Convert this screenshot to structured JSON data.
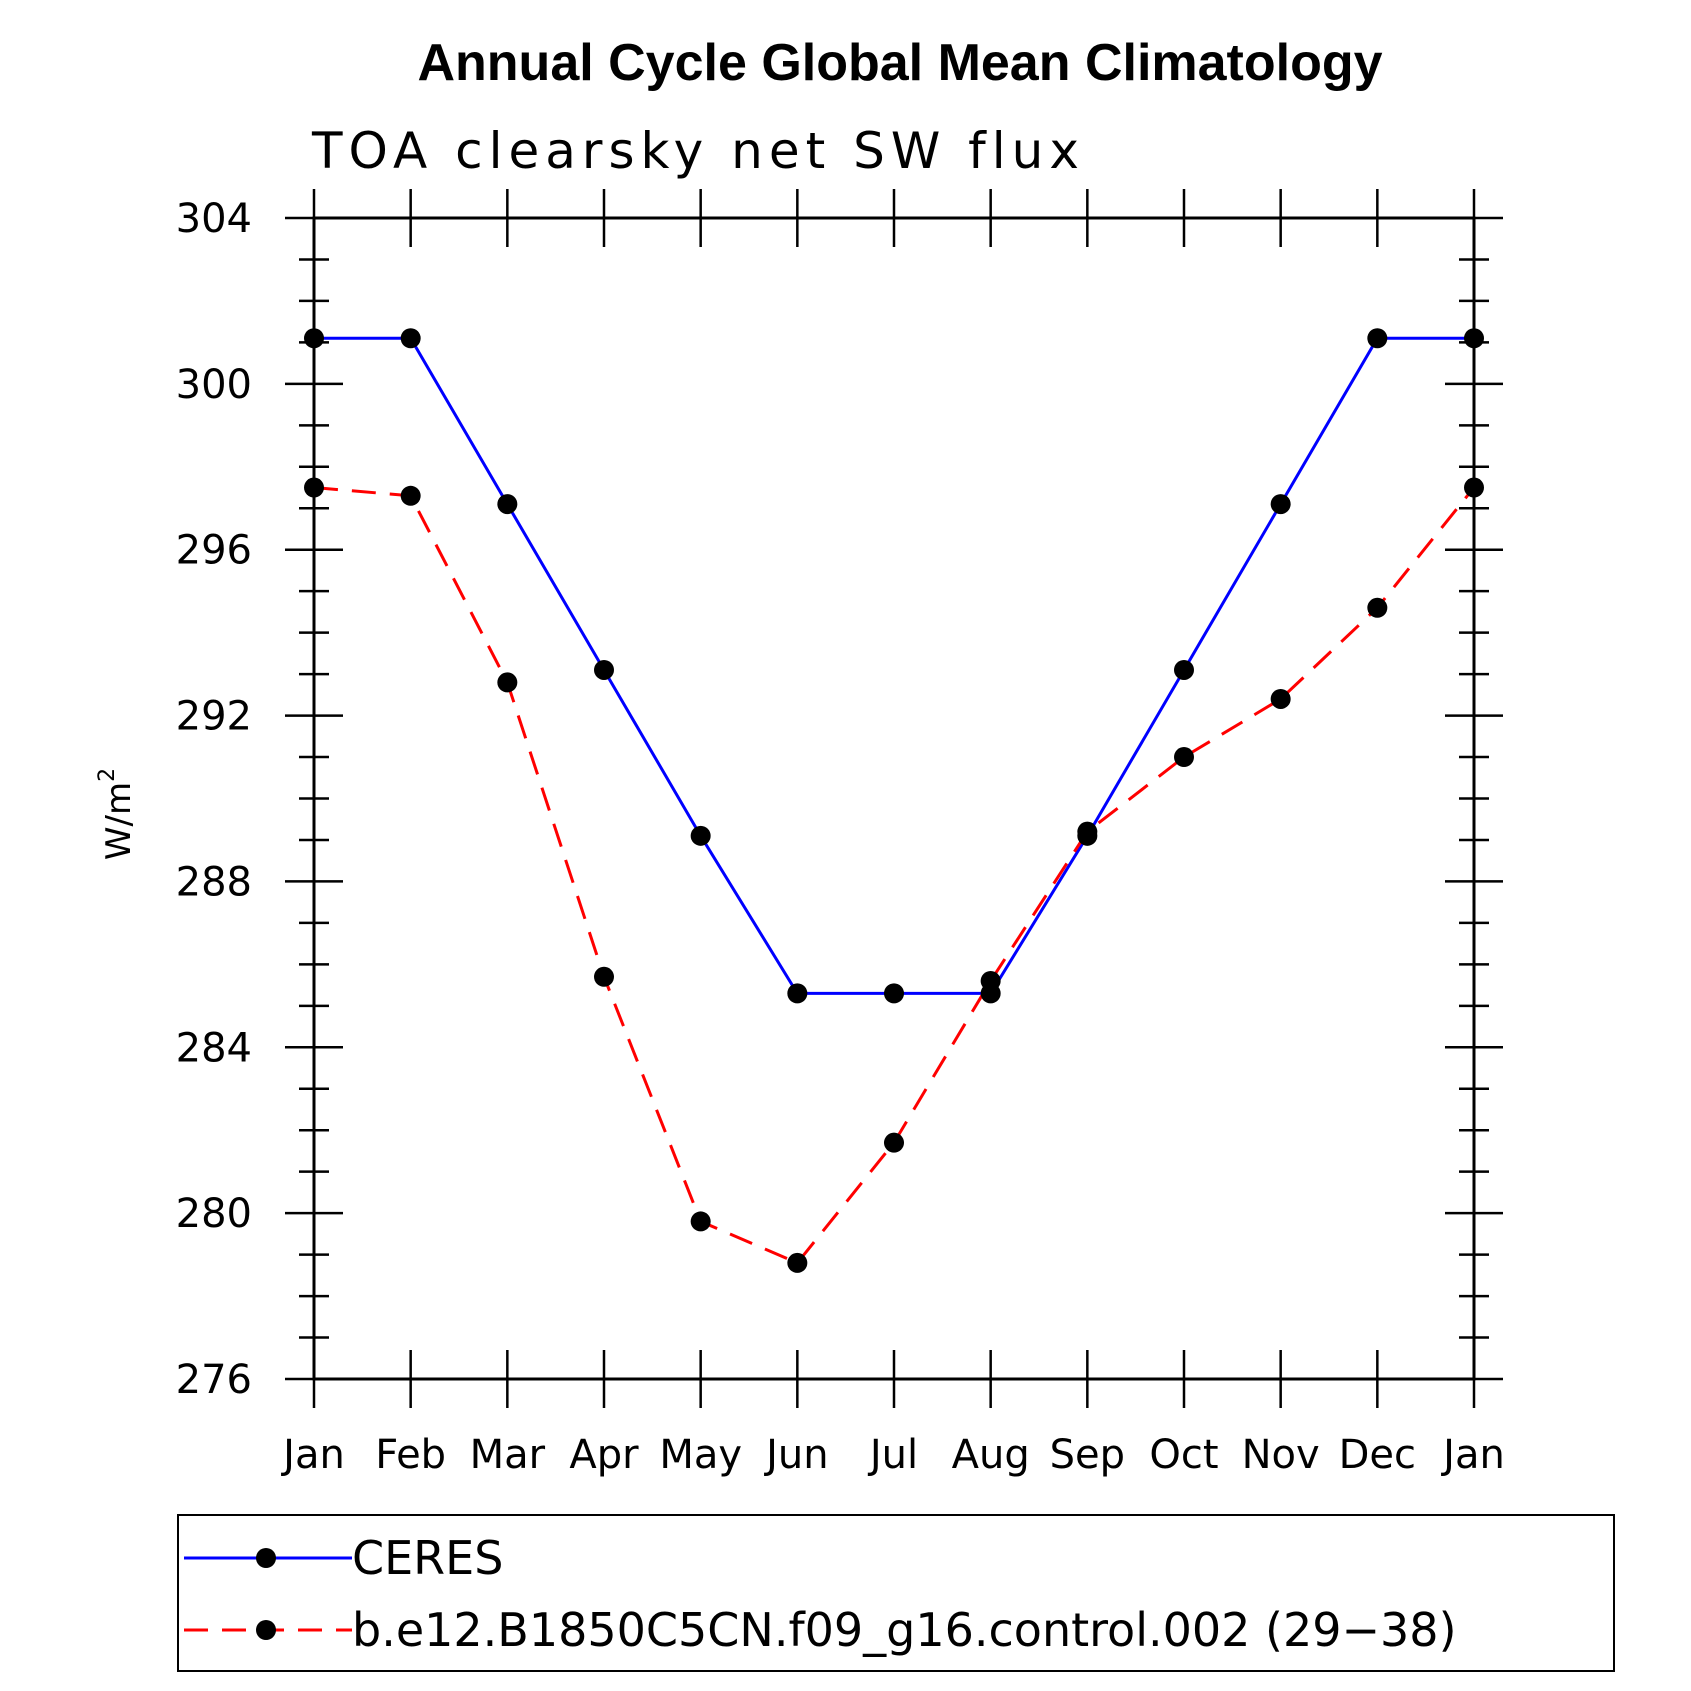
{
  "chart_data": {
    "type": "line",
    "title": "Annual Cycle Global Mean Climatology",
    "subtitle": "TOA clearsky net SW flux",
    "ylabel": "W/m",
    "ylabel_superscript": "2",
    "ylim": [
      276,
      304
    ],
    "yticks": [
      276,
      280,
      284,
      288,
      292,
      296,
      300,
      304
    ],
    "categories": [
      "Jan",
      "Feb",
      "Mar",
      "Apr",
      "May",
      "Jun",
      "Jul",
      "Aug",
      "Sep",
      "Oct",
      "Nov",
      "Dec",
      "Jan"
    ],
    "grid": false,
    "legend_position": "bottom",
    "series": [
      {
        "name": "CERES",
        "color": "#0000ff",
        "line_style": "solid",
        "marker": "filled-circle",
        "values": [
          301.1,
          301.1,
          297.1,
          293.1,
          289.1,
          285.3,
          285.3,
          285.3,
          289.1,
          293.1,
          297.1,
          301.1,
          301.1
        ]
      },
      {
        "name": "b.e12.B1850C5CN.f09_g16.control.002 (29−38)",
        "color": "#ff0000",
        "line_style": "dashed",
        "marker": "filled-circle",
        "values": [
          297.5,
          297.3,
          292.8,
          285.7,
          279.8,
          278.8,
          281.7,
          285.6,
          289.2,
          291.0,
          292.4,
          294.6,
          297.5
        ]
      }
    ]
  }
}
